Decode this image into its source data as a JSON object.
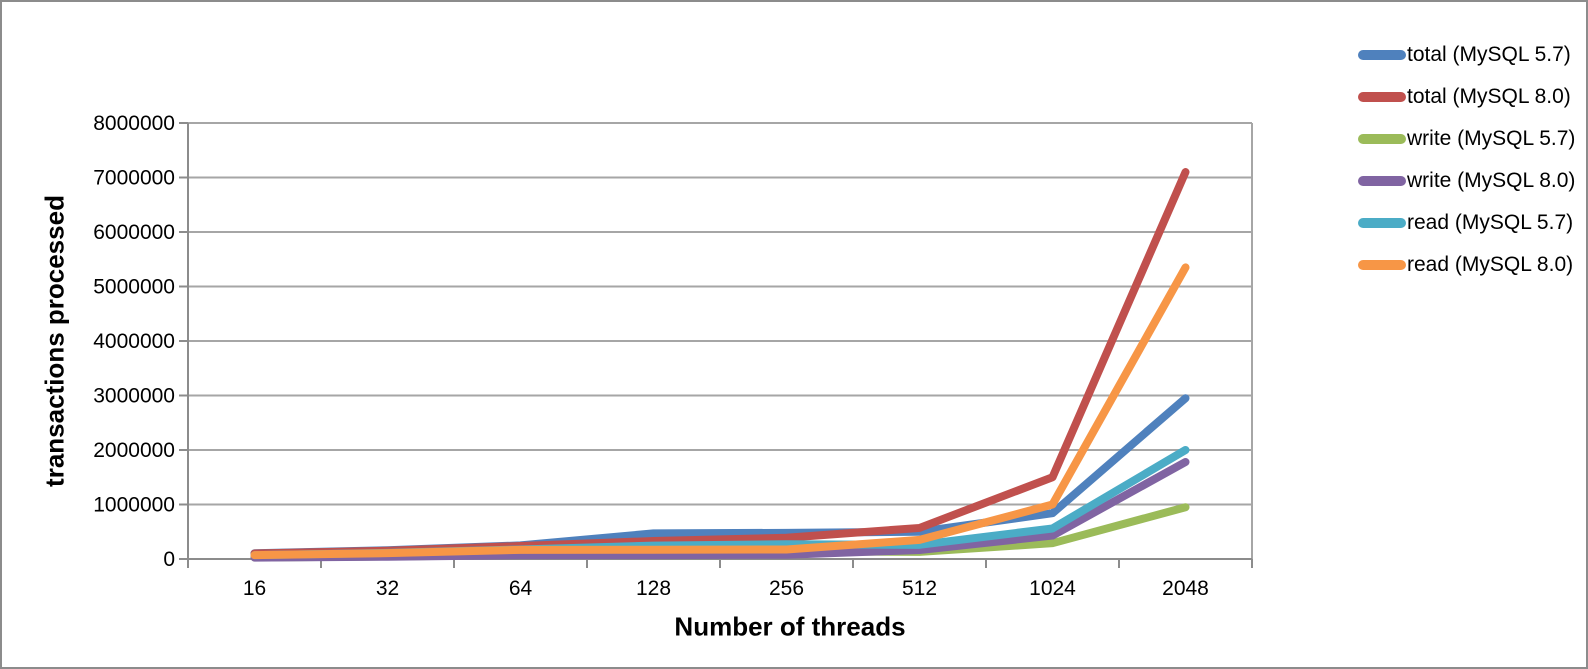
{
  "window": {
    "background": "#ffffff",
    "frame_border_color": "#8c8c8c"
  },
  "chart_data": {
    "type": "line",
    "title": "",
    "xlabel": "Number of threads",
    "ylabel": "transactions processed",
    "categories": [
      "16",
      "32",
      "64",
      "128",
      "256",
      "512",
      "1024",
      "2048"
    ],
    "y_axis": {
      "min": 0,
      "max": 8000000,
      "step": 1000000,
      "tick_labels": [
        "0",
        "1000000",
        "2000000",
        "3000000",
        "4000000",
        "5000000",
        "6000000",
        "7000000",
        "8000000"
      ]
    },
    "grid": true,
    "legend_position": "right",
    "line_width": 8,
    "colors": {
      "grid": "#a6a6a6",
      "axis": "#8c8c8c"
    },
    "series": [
      {
        "name": "total (MySQL 5.7)",
        "color": "#4F81BD",
        "values": [
          105000,
          160000,
          250000,
          470000,
          480000,
          500000,
          840000,
          2950000
        ]
      },
      {
        "name": "total (MySQL 8.0)",
        "color": "#C0504D",
        "values": [
          100000,
          152000,
          238000,
          330000,
          390000,
          570000,
          1500000,
          7100000
        ]
      },
      {
        "name": "write (MySQL 5.7)",
        "color": "#9BBB59",
        "values": [
          28000,
          46000,
          74000,
          110000,
          140000,
          130000,
          290000,
          950000
        ]
      },
      {
        "name": "write (MySQL 8.0)",
        "color": "#8064A2",
        "values": [
          26000,
          42000,
          68000,
          72000,
          78000,
          165000,
          430000,
          1780000
        ]
      },
      {
        "name": "read (MySQL 5.7)",
        "color": "#4BACC6",
        "values": [
          72000,
          112000,
          175000,
          245000,
          270000,
          260000,
          560000,
          2000000
        ]
      },
      {
        "name": "read (MySQL 8.0)",
        "color": "#F79646",
        "values": [
          70000,
          108000,
          168000,
          170000,
          175000,
          350000,
          1000000,
          5350000
        ]
      }
    ]
  }
}
